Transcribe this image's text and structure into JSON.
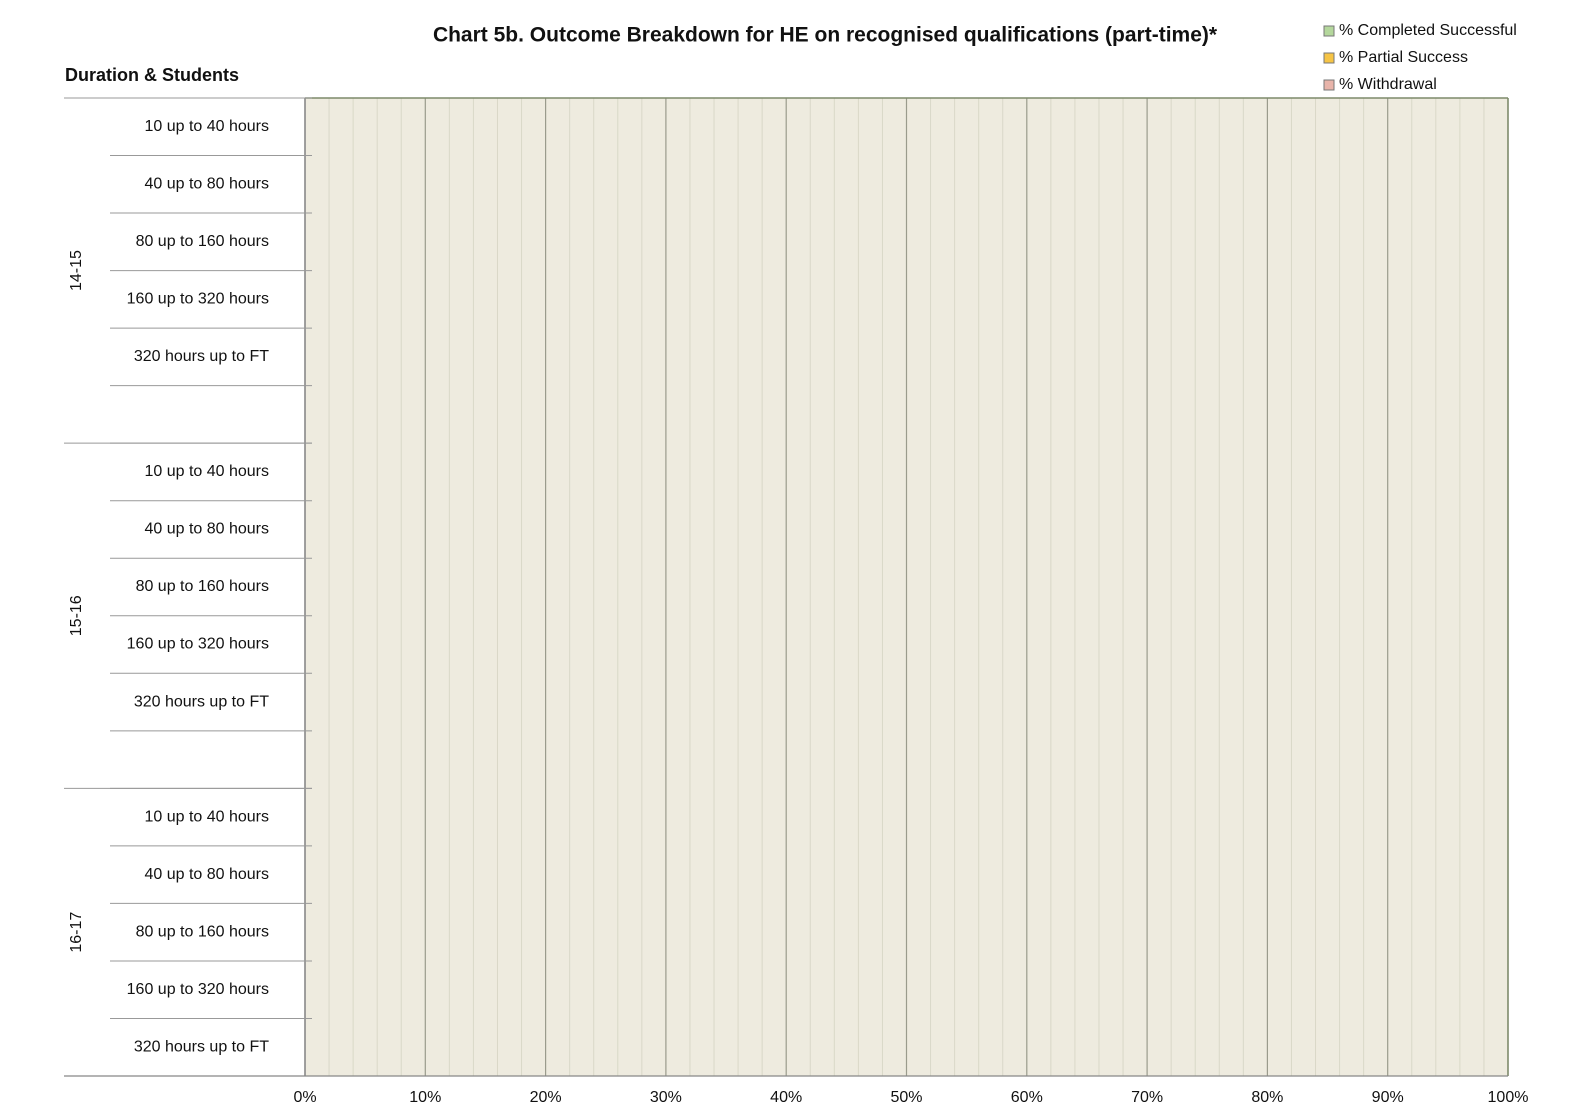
{
  "chart_data": {
    "type": "stacked-barh",
    "title": "Chart 5b. Outcome Breakdown for HE on recognised qualifications (part-time)*",
    "y_label": "Duration & Students",
    "categories": [
      "10 up to 40 hours",
      "40 up to 80 hours",
      "80 up to 160 hours",
      "160 up to 320 hours",
      "320 hours up to FT",
      null,
      "10 up to 40 hours",
      "40 up to 80 hours",
      "80 up to 160 hours",
      "160 up to 320 hours",
      "320 hours up to FT",
      null,
      "10 up to 40 hours",
      "40 up to 80 hours",
      "80 up to 160 hours",
      "160 up to 320 hours",
      "320 hours up to FT"
    ],
    "category_groups": [
      {
        "label": "14-15",
        "size": 6
      },
      {
        "label": "15-16",
        "size": 6
      },
      {
        "label": "16-17",
        "size": 5
      }
    ],
    "series": [
      {
        "name": "% Completed Successful",
        "color": "#b4d79c",
        "values": [
          null,
          null,
          null,
          null,
          null,
          null,
          null,
          null,
          null,
          null,
          null,
          null,
          null,
          null,
          null,
          null,
          null
        ]
      },
      {
        "name": "% Partial Success",
        "color": "#f6c445",
        "values": [
          null,
          null,
          null,
          null,
          null,
          null,
          null,
          null,
          null,
          null,
          null,
          null,
          null,
          null,
          null,
          null,
          null
        ]
      },
      {
        "name": "% Withdrawal",
        "color": "#e8b4aa",
        "values": [
          null,
          null,
          null,
          null,
          null,
          null,
          null,
          null,
          null,
          null,
          null,
          null,
          null,
          null,
          null,
          null,
          null
        ]
      }
    ],
    "xlim": [
      0,
      100
    ],
    "xticks": [
      {
        "value": 0,
        "label": "0%"
      },
      {
        "value": 10,
        "label": "10%"
      },
      {
        "value": 20,
        "label": "20%"
      },
      {
        "value": 30,
        "label": "30%"
      },
      {
        "value": 40,
        "label": "40%"
      },
      {
        "value": 50,
        "label": "50%"
      },
      {
        "value": 60,
        "label": "60%"
      },
      {
        "value": 70,
        "label": "70%"
      },
      {
        "value": 80,
        "label": "80%"
      },
      {
        "value": 90,
        "label": "90%"
      },
      {
        "value": 100,
        "label": "100%"
      }
    ],
    "xminorticks": [
      2,
      4,
      6,
      8,
      12,
      14,
      16,
      18,
      22,
      24,
      26,
      28,
      32,
      34,
      36,
      38,
      42,
      44,
      46,
      48,
      52,
      54,
      56,
      58,
      62,
      64,
      66,
      68,
      72,
      74,
      76,
      78,
      82,
      84,
      86,
      88,
      92,
      94,
      96,
      98
    ],
    "grid": true,
    "legend": "top-right"
  }
}
